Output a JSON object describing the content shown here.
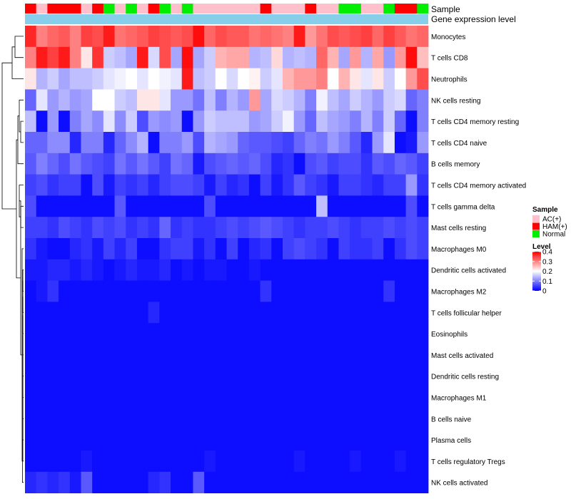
{
  "chart_data": {
    "type": "heatmap",
    "annotation_rows": {
      "sample_label": "Sample",
      "gene_label": "Gene expression level"
    },
    "legend": {
      "sample_title": "Sample",
      "level_title": "Level",
      "sample_entries": [
        {
          "name": "AC(+)",
          "color": "#FFC0CB"
        },
        {
          "name": "HAM(+)",
          "color": "#FF0000"
        },
        {
          "name": "Normal",
          "color": "#00EE00"
        }
      ],
      "level_ticks": [
        "0.4",
        "0.3",
        "0.2",
        "0.1",
        "0"
      ],
      "level_tick_values": [
        0.4,
        0.3,
        0.2,
        0.1,
        0
      ]
    },
    "color_scale": {
      "low": "#0000FF",
      "mid": "#FFFFFF",
      "high": "#FF0000",
      "range": [
        0,
        0.4
      ]
    },
    "gene_bar_color": "#87CEEB",
    "samples": [
      "HAM(+)",
      "AC(+)",
      "HAM(+)",
      "HAM(+)",
      "HAM(+)",
      "AC(+)",
      "HAM(+)",
      "Normal",
      "AC(+)",
      "Normal",
      "AC(+)",
      "HAM(+)",
      "Normal",
      "AC(+)",
      "Normal",
      "AC(+)",
      "AC(+)",
      "AC(+)",
      "AC(+)",
      "AC(+)",
      "AC(+)",
      "HAM(+)",
      "AC(+)",
      "AC(+)",
      "AC(+)",
      "HAM(+)",
      "AC(+)",
      "AC(+)",
      "Normal",
      "Normal",
      "AC(+)",
      "AC(+)",
      "Normal",
      "HAM(+)",
      "HAM(+)",
      "Normal"
    ],
    "rows": [
      "Monocytes",
      "T cells CD8",
      "Neutrophils",
      "NK cells resting",
      "T cells CD4 memory resting",
      "T cells CD4 naive",
      "B cells memory",
      "T cells CD4 memory activated",
      "T cells gamma delta",
      "Mast cells resting",
      "Macrophages M0",
      "Dendritic cells activated",
      "Macrophages M2",
      "T cells follicular helper",
      "Eosinophils",
      "Mast cells activated",
      "Dendritic cells resting",
      "Macrophages M1",
      "B cells naive",
      "Plasma cells",
      "T cells regulatory  Tregs",
      "NK cells activated"
    ],
    "values": [
      [
        0.37,
        0.3,
        0.32,
        0.33,
        0.3,
        0.35,
        0.34,
        0.38,
        0.31,
        0.32,
        0.33,
        0.35,
        0.34,
        0.33,
        0.34,
        0.39,
        0.32,
        0.34,
        0.33,
        0.33,
        0.31,
        0.32,
        0.31,
        0.3,
        0.38,
        0.28,
        0.31,
        0.34,
        0.33,
        0.34,
        0.35,
        0.32,
        0.35,
        0.33,
        0.31,
        0.32
      ],
      [
        0.3,
        0.38,
        0.35,
        0.38,
        0.3,
        0.22,
        0.36,
        0.16,
        0.15,
        0.13,
        0.38,
        0.17,
        0.34,
        0.13,
        0.39,
        0.13,
        0.16,
        0.26,
        0.27,
        0.27,
        0.14,
        0.15,
        0.23,
        0.14,
        0.15,
        0.14,
        0.32,
        0.26,
        0.13,
        0.28,
        0.14,
        0.27,
        0.12,
        0.28,
        0.39,
        0.25
      ],
      [
        0.22,
        0.14,
        0.16,
        0.13,
        0.15,
        0.15,
        0.16,
        0.18,
        0.19,
        0.2,
        0.18,
        0.2,
        0.19,
        0.18,
        0.38,
        0.15,
        0.16,
        0.2,
        0.17,
        0.2,
        0.21,
        0.16,
        0.18,
        0.26,
        0.28,
        0.28,
        0.3,
        0.2,
        0.26,
        0.22,
        0.18,
        0.22,
        0.16,
        0.2,
        0.28,
        0.34
      ],
      [
        0.08,
        0.18,
        0.12,
        0.14,
        0.12,
        0.13,
        0.2,
        0.2,
        0.16,
        0.15,
        0.22,
        0.22,
        0.18,
        0.12,
        0.12,
        0.09,
        0.15,
        0.1,
        0.14,
        0.12,
        0.28,
        0.13,
        0.17,
        0.16,
        0.14,
        0.1,
        0.19,
        0.15,
        0.13,
        0.16,
        0.14,
        0.12,
        0.16,
        0.17,
        0.08,
        0.1
      ],
      [
        0.15,
        0.01,
        0.12,
        0.01,
        0.1,
        0.13,
        0.11,
        0.18,
        0.11,
        0.16,
        0.06,
        0.12,
        0.11,
        0.12,
        0.01,
        0.12,
        0.16,
        0.15,
        0.15,
        0.15,
        0.12,
        0.13,
        0.16,
        0.19,
        0.12,
        0.08,
        0.15,
        0.13,
        0.12,
        0.1,
        0.14,
        0.1,
        0.16,
        0.08,
        0.01,
        0.1
      ],
      [
        0.08,
        0.08,
        0.11,
        0.11,
        0.03,
        0.1,
        0.1,
        0.03,
        0.08,
        0.11,
        0.14,
        0.01,
        0.1,
        0.1,
        0.12,
        0.06,
        0.14,
        0.13,
        0.12,
        0.08,
        0.07,
        0.07,
        0.06,
        0.05,
        0.08,
        0.1,
        0.09,
        0.12,
        0.1,
        0.07,
        0.03,
        0.12,
        0.18,
        0.01,
        0.02,
        0.12
      ],
      [
        0.07,
        0.1,
        0.08,
        0.06,
        0.09,
        0.07,
        0.06,
        0.05,
        0.09,
        0.07,
        0.09,
        0.07,
        0.05,
        0.09,
        0.08,
        0.02,
        0.06,
        0.07,
        0.08,
        0.07,
        0.08,
        0.06,
        0.03,
        0.04,
        0.01,
        0.06,
        0.07,
        0.05,
        0.06,
        0.06,
        0.04,
        0.07,
        0.06,
        0.08,
        0.07,
        0.05
      ],
      [
        0.05,
        0.06,
        0.04,
        0.05,
        0.05,
        0.01,
        0.06,
        0.02,
        0.05,
        0.04,
        0.05,
        0.03,
        0.05,
        0.06,
        0.06,
        0.05,
        0.02,
        0.05,
        0.03,
        0.04,
        0.01,
        0.05,
        0.02,
        0.04,
        0.07,
        0.05,
        0.04,
        0.02,
        0.05,
        0.05,
        0.04,
        0.03,
        0.05,
        0.05,
        0.12,
        0.04
      ],
      [
        0.06,
        0.01,
        0.01,
        0.01,
        0.01,
        0.01,
        0.01,
        0.01,
        0.07,
        0.01,
        0.01,
        0.01,
        0.01,
        0.01,
        0.01,
        0.01,
        0.06,
        0.01,
        0.01,
        0.01,
        0.01,
        0.01,
        0.01,
        0.01,
        0.01,
        0.01,
        0.15,
        0.01,
        0.01,
        0.01,
        0.01,
        0.01,
        0.01,
        0.01,
        0.06,
        0.01
      ],
      [
        0.05,
        0.05,
        0.04,
        0.06,
        0.05,
        0.04,
        0.06,
        0.05,
        0.06,
        0.04,
        0.05,
        0.04,
        0.08,
        0.04,
        0.05,
        0.04,
        0.04,
        0.05,
        0.06,
        0.05,
        0.06,
        0.07,
        0.06,
        0.05,
        0.04,
        0.05,
        0.05,
        0.06,
        0.05,
        0.04,
        0.05,
        0.05,
        0.06,
        0.05,
        0.06,
        0.05
      ],
      [
        0.04,
        0.02,
        0.01,
        0.01,
        0.03,
        0.04,
        0.02,
        0.05,
        0.03,
        0.05,
        0.01,
        0.01,
        0.04,
        0.05,
        0.05,
        0.02,
        0.04,
        0.01,
        0.05,
        0.01,
        0.03,
        0.04,
        0.01,
        0.05,
        0.06,
        0.05,
        0.04,
        0.01,
        0.05,
        0.04,
        0.04,
        0.05,
        0.01,
        0.04,
        0.06,
        0.05
      ],
      [
        0.02,
        0.02,
        0.03,
        0.03,
        0.02,
        0.03,
        0.02,
        0.01,
        0.02,
        0.03,
        0.02,
        0.02,
        0.03,
        0.01,
        0.02,
        0.01,
        0.02,
        0.02,
        0.01,
        0.01,
        0.02,
        0.01,
        0.01,
        0.01,
        0.01,
        0.01,
        0.01,
        0.01,
        0.01,
        0.01,
        0.01,
        0.01,
        0.01,
        0.01,
        0.01,
        0.01
      ],
      [
        0.01,
        0.02,
        0.04,
        0.01,
        0.01,
        0.01,
        0.01,
        0.01,
        0.01,
        0.01,
        0.01,
        0.01,
        0.01,
        0.01,
        0.01,
        0.01,
        0.01,
        0.01,
        0.01,
        0.01,
        0.01,
        0.04,
        0.01,
        0.01,
        0.01,
        0.01,
        0.01,
        0.01,
        0.01,
        0.01,
        0.01,
        0.01,
        0.04,
        0.01,
        0.01,
        0.01
      ],
      [
        0.01,
        0.01,
        0.01,
        0.01,
        0.01,
        0.01,
        0.01,
        0.01,
        0.01,
        0.01,
        0.01,
        0.03,
        0.01,
        0.01,
        0.01,
        0.01,
        0.01,
        0.01,
        0.01,
        0.01,
        0.01,
        0.01,
        0.01,
        0.01,
        0.01,
        0.01,
        0.01,
        0.01,
        0.01,
        0.01,
        0.01,
        0.01,
        0.01,
        0.01,
        0.01,
        0.01
      ],
      [
        0.01,
        0.01,
        0.01,
        0.01,
        0.01,
        0.01,
        0.01,
        0.01,
        0.01,
        0.01,
        0.01,
        0.01,
        0.01,
        0.01,
        0.01,
        0.01,
        0.01,
        0.01,
        0.01,
        0.01,
        0.01,
        0.01,
        0.01,
        0.01,
        0.01,
        0.01,
        0.01,
        0.01,
        0.01,
        0.01,
        0.01,
        0.01,
        0.01,
        0.01,
        0.01,
        0.01
      ],
      [
        0.01,
        0.01,
        0.01,
        0.01,
        0.01,
        0.01,
        0.01,
        0.01,
        0.01,
        0.01,
        0.01,
        0.01,
        0.01,
        0.01,
        0.01,
        0.01,
        0.01,
        0.01,
        0.01,
        0.01,
        0.01,
        0.01,
        0.01,
        0.01,
        0.01,
        0.01,
        0.01,
        0.01,
        0.01,
        0.01,
        0.01,
        0.01,
        0.01,
        0.01,
        0.01,
        0.01
      ],
      [
        0.01,
        0.01,
        0.01,
        0.01,
        0.01,
        0.01,
        0.01,
        0.01,
        0.01,
        0.01,
        0.01,
        0.01,
        0.01,
        0.01,
        0.01,
        0.01,
        0.01,
        0.01,
        0.01,
        0.01,
        0.01,
        0.01,
        0.01,
        0.01,
        0.01,
        0.01,
        0.01,
        0.01,
        0.01,
        0.01,
        0.01,
        0.01,
        0.01,
        0.01,
        0.01,
        0.01
      ],
      [
        0.01,
        0.01,
        0.01,
        0.01,
        0.01,
        0.01,
        0.01,
        0.01,
        0.01,
        0.01,
        0.01,
        0.01,
        0.01,
        0.01,
        0.01,
        0.01,
        0.01,
        0.01,
        0.01,
        0.01,
        0.01,
        0.01,
        0.01,
        0.01,
        0.01,
        0.01,
        0.01,
        0.01,
        0.01,
        0.01,
        0.01,
        0.01,
        0.01,
        0.01,
        0.01,
        0.01
      ],
      [
        0.01,
        0.01,
        0.01,
        0.01,
        0.01,
        0.01,
        0.01,
        0.01,
        0.01,
        0.01,
        0.01,
        0.01,
        0.01,
        0.01,
        0.01,
        0.01,
        0.01,
        0.01,
        0.01,
        0.01,
        0.01,
        0.01,
        0.01,
        0.01,
        0.01,
        0.01,
        0.01,
        0.01,
        0.01,
        0.01,
        0.01,
        0.01,
        0.01,
        0.01,
        0.01,
        0.01
      ],
      [
        0.01,
        0.01,
        0.01,
        0.01,
        0.01,
        0.01,
        0.01,
        0.01,
        0.01,
        0.01,
        0.01,
        0.01,
        0.01,
        0.01,
        0.01,
        0.01,
        0.01,
        0.01,
        0.01,
        0.01,
        0.01,
        0.01,
        0.01,
        0.01,
        0.01,
        0.01,
        0.01,
        0.01,
        0.01,
        0.01,
        0.01,
        0.01,
        0.01,
        0.01,
        0.01,
        0.01
      ],
      [
        0.01,
        0.01,
        0.01,
        0.01,
        0.01,
        0.02,
        0.01,
        0.01,
        0.01,
        0.01,
        0.01,
        0.01,
        0.01,
        0.01,
        0.01,
        0.01,
        0.02,
        0.01,
        0.01,
        0.01,
        0.01,
        0.01,
        0.01,
        0.01,
        0.02,
        0.01,
        0.01,
        0.01,
        0.01,
        0.02,
        0.01,
        0.01,
        0.01,
        0.02,
        0.01,
        0.01
      ],
      [
        0.03,
        0.04,
        0.03,
        0.04,
        0.02,
        0.07,
        0.01,
        0.01,
        0.01,
        0.01,
        0.01,
        0.03,
        0.04,
        0.01,
        0.01,
        0.07,
        0.01,
        0.01,
        0.01,
        0.01,
        0.01,
        0.01,
        0.01,
        0.01,
        0.01,
        0.01,
        0.01,
        0.01,
        0.01,
        0.01,
        0.01,
        0.01,
        0.01,
        0.01,
        0.01,
        0.01
      ]
    ],
    "dendrogram": {
      "merges": [
        [
          0,
          1,
          0.06
        ],
        [
          2,
          22,
          0.08
        ],
        [
          4,
          5,
          0.02
        ],
        [
          3,
          24,
          0.03
        ],
        [
          8,
          9,
          0.02
        ],
        [
          7,
          26,
          0.03
        ],
        [
          11,
          12,
          0.005
        ],
        [
          28,
          13,
          0.005
        ],
        [
          29,
          14,
          0.005
        ],
        [
          30,
          15,
          0.005
        ],
        [
          31,
          16,
          0.005
        ],
        [
          32,
          17,
          0.005
        ],
        [
          33,
          18,
          0.005
        ],
        [
          34,
          19,
          0.005
        ],
        [
          35,
          20,
          0.005
        ],
        [
          36,
          21,
          0.008
        ],
        [
          10,
          37,
          0.01
        ],
        [
          27,
          38,
          0.02
        ],
        [
          6,
          25,
          0.04
        ],
        [
          40,
          39,
          0.05
        ],
        [
          23,
          41,
          0.15
        ]
      ]
    }
  }
}
